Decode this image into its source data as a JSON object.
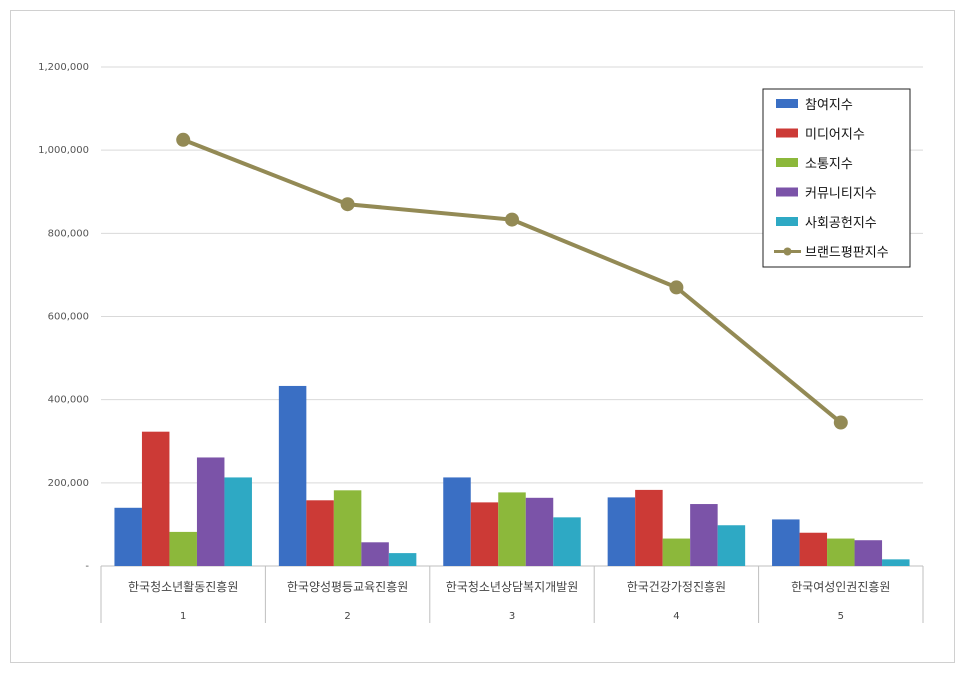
{
  "chart_data": {
    "type": "bar",
    "categories": [
      "한국청소년활동진흥원",
      "한국양성평등교육진흥원",
      "한국청소년상담복지개발원",
      "한국건강가정진흥원",
      "한국여성인권진흥원"
    ],
    "category_numbers": [
      "1",
      "2",
      "3",
      "4",
      "5"
    ],
    "series": [
      {
        "name": "참여지수",
        "kind": "bar",
        "color": "#3a6fc4",
        "values": [
          140000,
          433000,
          213000,
          165000,
          112000
        ]
      },
      {
        "name": "미디어지수",
        "kind": "bar",
        "color": "#cc3a36",
        "values": [
          323000,
          158000,
          153000,
          183000,
          80000
        ]
      },
      {
        "name": "소통지수",
        "kind": "bar",
        "color": "#8cb83b",
        "values": [
          82000,
          182000,
          177000,
          66000,
          66000
        ]
      },
      {
        "name": "커뮤니티지수",
        "kind": "bar",
        "color": "#7b53a8",
        "values": [
          261000,
          57000,
          164000,
          149000,
          62000
        ]
      },
      {
        "name": "사회공헌지수",
        "kind": "bar",
        "color": "#2ea9c4",
        "values": [
          213000,
          31000,
          117000,
          98000,
          16000
        ]
      },
      {
        "name": "브랜드평판지수",
        "kind": "line",
        "color": "#938a55",
        "values": [
          1025000,
          870000,
          833000,
          670000,
          345000
        ]
      }
    ],
    "y_ticks": [
      "-",
      "200,000",
      "400,000",
      "600,000",
      "800,000",
      "1,000,000",
      "1,200,000"
    ],
    "ylim": [
      0,
      1200000
    ],
    "grid": true,
    "legend": "top-right",
    "title": "",
    "xlabel": "",
    "ylabel": ""
  }
}
